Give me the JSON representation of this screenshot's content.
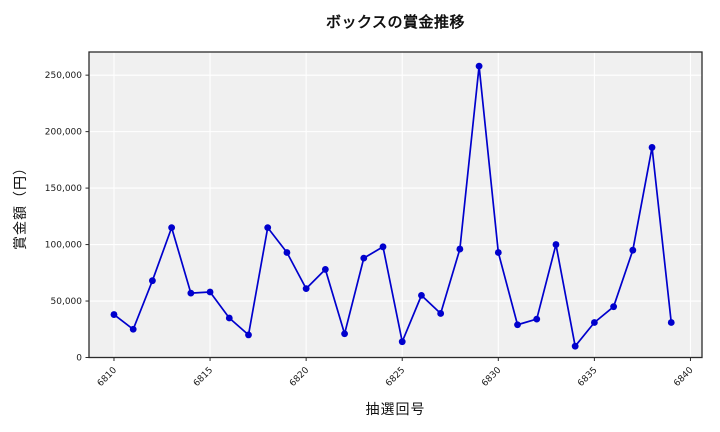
{
  "chart_data": {
    "type": "line",
    "title": "ボックスの賞金推移",
    "xlabel": "抽選回号",
    "ylabel": "賞金額（円）",
    "x": [
      6810,
      6811,
      6812,
      6813,
      6814,
      6815,
      6816,
      6817,
      6818,
      6819,
      6820,
      6821,
      6822,
      6823,
      6824,
      6825,
      6826,
      6827,
      6828,
      6829,
      6830,
      6831,
      6832,
      6833,
      6834,
      6835,
      6836,
      6837,
      6838,
      6839
    ],
    "values": [
      38000,
      25000,
      68000,
      115000,
      57000,
      58000,
      35000,
      20000,
      115000,
      93000,
      61000,
      78000,
      21000,
      88000,
      98000,
      14000,
      55000,
      39000,
      96000,
      258000,
      93000,
      29000,
      34000,
      100000,
      10000,
      31000,
      45000,
      95000,
      186000,
      31000
    ],
    "xticks": [
      {
        "value": 6810,
        "label": "6810"
      },
      {
        "value": 6815,
        "label": "6815"
      },
      {
        "value": 6820,
        "label": "6820"
      },
      {
        "value": 6825,
        "label": "6825"
      },
      {
        "value": 6830,
        "label": "6830"
      },
      {
        "value": 6835,
        "label": "6835"
      },
      {
        "value": 6840,
        "label": "6840"
      }
    ],
    "yticks": [
      {
        "value": 0,
        "label": "0"
      },
      {
        "value": 50000,
        "label": "50,000"
      },
      {
        "value": 100000,
        "label": "100,000"
      },
      {
        "value": 150000,
        "label": "150,000"
      },
      {
        "value": 200000,
        "label": "200,000"
      },
      {
        "value": 250000,
        "label": "250,000"
      }
    ],
    "xlim": [
      6808.7,
      6840.6
    ],
    "ylim": [
      0,
      270500
    ],
    "grid": true,
    "legend": "none",
    "colors": {
      "line": "#0000cd",
      "marker": "#0000cd",
      "plot_background": "#f0f0f0",
      "figure_background": "#ffffff",
      "grid": "#ffffff",
      "spine": "#2b2b2b",
      "tick_text": "#1a1a1a"
    }
  }
}
